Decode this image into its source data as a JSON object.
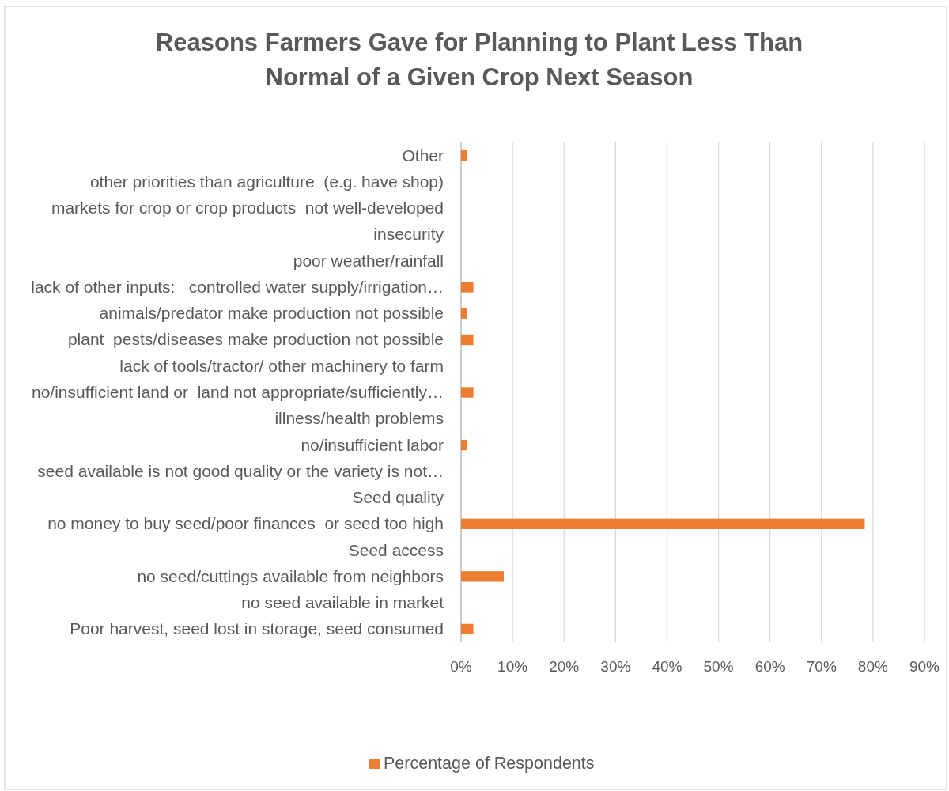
{
  "chart_data": {
    "type": "bar",
    "orientation": "horizontal",
    "title": "Reasons Farmers Gave for Planning to Plant Less Than\nNormal of a Given Crop Next Season",
    "categories": [
      "Other",
      "other priorities than agriculture  (e.g. have shop)",
      "markets for crop or crop products  not well-developed",
      "insecurity",
      "poor weather/rainfall",
      "lack of other inputs:   controlled water supply/irrigation…",
      "animals/predator make production not possible",
      "plant  pests/diseases make production not possible",
      "lack of tools/tractor/ other machinery to farm",
      "no/insufficient land or  land not appropriate/sufficiently…",
      "illness/health problems",
      "no/insufficient labor",
      "seed available is not good quality or the variety is not…",
      "Seed quality",
      "no money to buy seed/poor finances  or seed too high",
      "Seed access",
      "no seed/cuttings available from neighbors",
      "no seed available in market",
      "Poor harvest, seed lost in storage, seed consumed"
    ],
    "series": [
      {
        "name": "Percentage of Respondents",
        "color": "#ed7d31",
        "values": [
          1.2,
          0,
          0,
          0,
          0,
          2.4,
          1.2,
          2.4,
          0,
          2.4,
          0,
          1.2,
          0,
          0,
          78.4,
          0,
          8.3,
          0,
          2.4
        ]
      }
    ],
    "xlim": [
      0,
      90
    ],
    "xticks": [
      {
        "value": 0,
        "label": "0%"
      },
      {
        "value": 10,
        "label": "10%"
      },
      {
        "value": 20,
        "label": "20%"
      },
      {
        "value": 30,
        "label": "30%"
      },
      {
        "value": 40,
        "label": "40%"
      },
      {
        "value": 50,
        "label": "50%"
      },
      {
        "value": 60,
        "label": "60%"
      },
      {
        "value": 70,
        "label": "70%"
      },
      {
        "value": 80,
        "label": "80%"
      },
      {
        "value": 90,
        "label": "90%"
      }
    ],
    "grid": "x",
    "legend": "bottom"
  }
}
